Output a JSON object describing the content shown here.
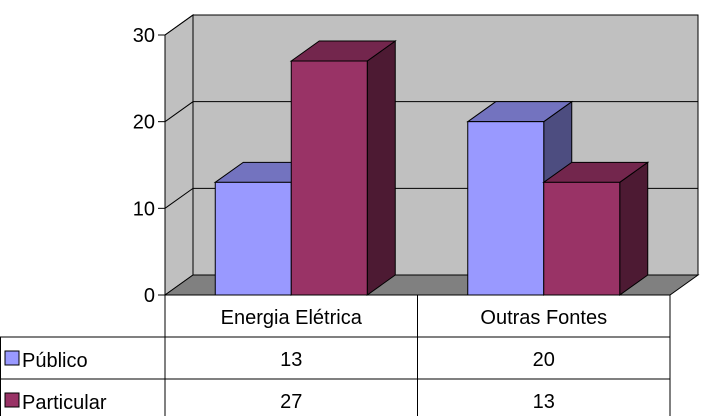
{
  "chart_data": {
    "type": "bar",
    "categories": [
      "Energia Elétrica",
      "Outras Fontes"
    ],
    "series": [
      {
        "name": "Público",
        "values": [
          13,
          20
        ],
        "color": "#9999ff"
      },
      {
        "name": "Particular",
        "values": [
          27,
          13
        ],
        "color": "#993366"
      }
    ],
    "ylim": [
      0,
      30
    ],
    "yticks": [
      0,
      10,
      20,
      30
    ],
    "grid": true,
    "legend": "data-table",
    "plot_wall_color": "#c0c0c0"
  }
}
